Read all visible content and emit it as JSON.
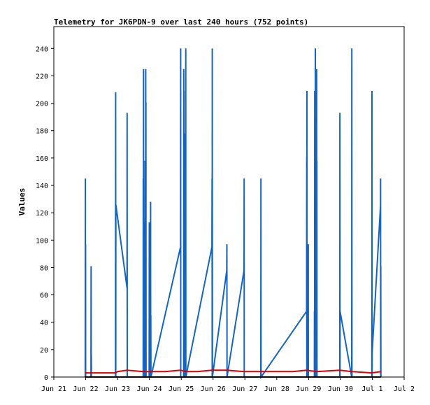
{
  "chart_data": {
    "type": "line",
    "title": "Telemetry for JK6PDN-9 over last 240 hours (752 points)",
    "xlabel": "",
    "ylabel": "Values",
    "xlim": [
      "Jun 21",
      "Jul 2"
    ],
    "ylim": [
      0,
      256
    ],
    "x_ticks": [
      "Jun 21",
      "Jun 22",
      "Jun 23",
      "Jun 24",
      "Jun 25",
      "Jun 26",
      "Jun 27",
      "Jun 28",
      "Jun 29",
      "Jun 30",
      "Jul 1",
      "Jul 2"
    ],
    "y_ticks": [
      0,
      20,
      40,
      60,
      80,
      100,
      120,
      140,
      160,
      180,
      200,
      220,
      240
    ],
    "grid": false,
    "colors": {
      "series1": "#1565c0",
      "series2": "#dd0000",
      "series3": "#000000"
    },
    "series": [
      {
        "color": "#1565c0",
        "points": [
          [
            "Jun 21 23:40",
            0
          ],
          [
            "Jun 21 23:45",
            145
          ],
          [
            "Jun 21 23:50",
            0
          ],
          [
            "Jun 21 23:55",
            97
          ],
          [
            "Jun 22 00:00",
            0
          ],
          [
            "Jun 22 04:00",
            0
          ],
          [
            "Jun 22 04:05",
            81
          ],
          [
            "Jun 22 04:10",
            0
          ],
          [
            "Jun 22 04:15",
            16
          ],
          [
            "Jun 22 04:20",
            0
          ],
          [
            "Jun 22 22:30",
            0
          ],
          [
            "Jun 22 22:35",
            208
          ],
          [
            "Jun 22 22:40",
            0
          ],
          [
            "Jun 22 22:45",
            126
          ],
          [
            "Jun 23 07:10",
            65
          ],
          [
            "Jun 23 07:15",
            193
          ],
          [
            "Jun 23 07:20",
            0
          ],
          [
            "Jun 23 19:20",
            0
          ],
          [
            "Jun 23 19:25",
            145
          ],
          [
            "Jun 23 19:30",
            0
          ],
          [
            "Jun 23 19:35",
            225
          ],
          [
            "Jun 23 19:40",
            0
          ],
          [
            "Jun 23 20:30",
            0
          ],
          [
            "Jun 23 20:35",
            113
          ],
          [
            "Jun 23 20:40",
            0
          ],
          [
            "Jun 23 20:45",
            158
          ],
          [
            "Jun 23 20:50",
            0
          ],
          [
            "Jun 23 21:10",
            0
          ],
          [
            "Jun 23 21:15",
            225
          ],
          [
            "Jun 23 21:20",
            0
          ],
          [
            "Jun 23 21:25",
            201
          ],
          [
            "Jun 23 21:30",
            0
          ],
          [
            "Jun 23 23:50",
            0
          ],
          [
            "Jun 23 23:55",
            113
          ],
          [
            "Jun 24 00:00",
            0
          ],
          [
            "Jun 24 00:50",
            0
          ],
          [
            "Jun 24 00:55",
            128
          ],
          [
            "Jun 24 01:00",
            0
          ],
          [
            "Jun 24 01:05",
            45
          ],
          [
            "Jun 24 01:10",
            0
          ],
          [
            "Jun 24 23:30",
            95
          ],
          [
            "Jun 24 23:35",
            240
          ],
          [
            "Jun 24 23:40",
            0
          ],
          [
            "Jun 25 01:50",
            0
          ],
          [
            "Jun 25 01:55",
            225
          ],
          [
            "Jun 25 02:00",
            0
          ],
          [
            "Jun 25 02:05",
            209
          ],
          [
            "Jun 25 02:10",
            0
          ],
          [
            "Jun 25 02:40",
            0
          ],
          [
            "Jun 25 02:45",
            178
          ],
          [
            "Jun 25 02:50",
            0
          ],
          [
            "Jun 25 02:55",
            177
          ],
          [
            "Jun 25 03:00",
            0
          ],
          [
            "Jun 25 03:20",
            0
          ],
          [
            "Jun 25 03:25",
            240
          ],
          [
            "Jun 25 03:30",
            0
          ],
          [
            "Jun 25 23:10",
            95
          ],
          [
            "Jun 25 23:15",
            145
          ],
          [
            "Jun 25 23:20",
            0
          ],
          [
            "Jun 25 23:25",
            240
          ],
          [
            "Jun 25 23:30",
            0
          ],
          [
            "Jun 26 10:20",
            78
          ],
          [
            "Jun 26 10:25",
            97
          ],
          [
            "Jun 26 10:30",
            0
          ],
          [
            "Jun 26 23:20",
            78
          ],
          [
            "Jun 26 23:25",
            145
          ],
          [
            "Jun 26 23:30",
            0
          ],
          [
            "Jun 27 12:00",
            0
          ],
          [
            "Jun 27 12:05",
            145
          ],
          [
            "Jun 27 12:10",
            0
          ],
          [
            "Jun 28 22:30",
            48
          ],
          [
            "Jun 28 22:35",
            161
          ],
          [
            "Jun 28 22:40",
            0
          ],
          [
            "Jun 28 22:45",
            209
          ],
          [
            "Jun 28 22:50",
            0
          ],
          [
            "Jun 28 23:40",
            0
          ],
          [
            "Jun 28 23:45",
            97
          ],
          [
            "Jun 28 23:50",
            0
          ],
          [
            "Jun 29 04:20",
            0
          ],
          [
            "Jun 29 04:25",
            48
          ],
          [
            "Jun 29 04:30",
            0
          ],
          [
            "Jun 29 04:35",
            209
          ],
          [
            "Jun 29 04:40",
            0
          ],
          [
            "Jun 29 05:00",
            0
          ],
          [
            "Jun 29 05:05",
            240
          ],
          [
            "Jun 29 05:10",
            0
          ],
          [
            "Jun 29 05:15",
            161
          ],
          [
            "Jun 29 05:20",
            0
          ],
          [
            "Jun 29 06:00",
            0
          ],
          [
            "Jun 29 06:05",
            225
          ],
          [
            "Jun 29 06:10",
            0
          ],
          [
            "Jun 29 06:15",
            158
          ],
          [
            "Jun 29 06:20",
            0
          ],
          [
            "Jun 29 23:30",
            0
          ],
          [
            "Jun 29 23:35",
            193
          ],
          [
            "Jun 29 23:40",
            0
          ],
          [
            "Jun 29 23:45",
            48
          ],
          [
            "Jun 30 08:30",
            0
          ],
          [
            "Jun 30 08:35",
            240
          ],
          [
            "Jun 30 08:40",
            0
          ],
          [
            "Jun 30 23:40",
            0
          ],
          [
            "Jun 30 23:45",
            209
          ],
          [
            "Jun 30 23:50",
            0
          ],
          [
            "Jun 30 23:55",
            18
          ],
          [
            "Jul 1 06:10",
            125
          ],
          [
            "Jul 1 06:15",
            145
          ],
          [
            "Jul 1 06:20",
            0
          ],
          [
            "Jul 1 06:25",
            81
          ],
          [
            "Jul 1 06:30",
            0
          ]
        ]
      },
      {
        "color": "#dd0000",
        "points": [
          [
            "Jun 21 23:40",
            3
          ],
          [
            "Jun 21 23:45",
            3
          ],
          [
            "Jun 22 04:00",
            3
          ],
          [
            "Jun 22 22:30",
            3
          ],
          [
            "Jun 23 00:00",
            4
          ],
          [
            "Jun 23 07:10",
            5
          ],
          [
            "Jun 23 19:20",
            4
          ],
          [
            "Jun 24 00:50",
            4
          ],
          [
            "Jun 24 12:00",
            4
          ],
          [
            "Jun 24 23:30",
            5
          ],
          [
            "Jun 25 03:20",
            4
          ],
          [
            "Jun 25 12:00",
            4
          ],
          [
            "Jun 25 23:10",
            5
          ],
          [
            "Jun 26 10:20",
            5
          ],
          [
            "Jun 26 23:20",
            4
          ],
          [
            "Jun 27 12:00",
            4
          ],
          [
            "Jun 27 23:00",
            4
          ],
          [
            "Jun 28 12:00",
            4
          ],
          [
            "Jun 28 22:30",
            5
          ],
          [
            "Jun 29 06:00",
            4
          ],
          [
            "Jun 29 23:30",
            5
          ],
          [
            "Jun 30 08:30",
            4
          ],
          [
            "Jun 30 23:40",
            3
          ],
          [
            "Jul 1 06:30",
            4
          ]
        ]
      },
      {
        "color": "#000000",
        "points": [
          [
            "Jun 21 23:40",
            0
          ],
          [
            "Jul 1 06:30",
            0
          ]
        ]
      }
    ]
  }
}
